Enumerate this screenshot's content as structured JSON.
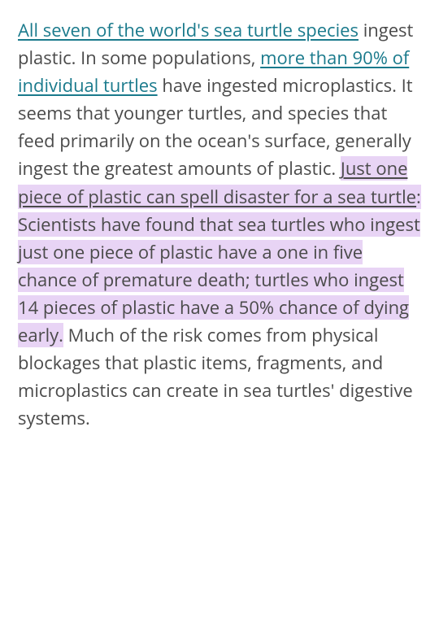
{
  "article": {
    "text_color": "#4a4a4a",
    "link_color": "#1a7a8c",
    "highlight_color": "#e8d4f5",
    "background_color": "#ffffff",
    "font_size": 22,
    "line_height": 1.55,
    "segments": {
      "link1": "All seven of the world's sea turtle species",
      "text1": " ingest plastic. In some populations, ",
      "link2": "more than 90% of individual turtles",
      "text2": " have ingested microplastics. It seems that younger turtles, and species that feed primarily on the ocean's surface, generally ingest the greatest amounts of plastic. ",
      "link3": "Just one piece of plastic can spell disaster for a sea turtle",
      "text3": ": Scientists have found that sea turtles who ingest just one piece of plastic have a one in five chance of premature death; turtles who ingest 14 pieces of plastic have a 50% chance of dying early.",
      "text4": " Much of the risk comes from physical blockages that plastic items, fragments, and microplastics can create in sea turtles' digestive systems."
    }
  }
}
